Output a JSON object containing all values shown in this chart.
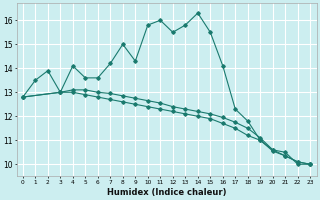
{
  "xlabel": "Humidex (Indice chaleur)",
  "background_color": "#cceef0",
  "grid_color": "#ffffff",
  "line_color": "#1a7a6e",
  "xlim": [
    -0.5,
    23.5
  ],
  "ylim": [
    9.5,
    16.7
  ],
  "yticks": [
    10,
    11,
    12,
    13,
    14,
    15,
    16
  ],
  "xticks": [
    0,
    1,
    2,
    3,
    4,
    5,
    6,
    7,
    8,
    9,
    10,
    11,
    12,
    13,
    14,
    15,
    16,
    17,
    18,
    19,
    20,
    21,
    22,
    23
  ],
  "line1_x": [
    0,
    1,
    2,
    3,
    4,
    5,
    6,
    7,
    8,
    9,
    10,
    11,
    12,
    13,
    14,
    15,
    16,
    17,
    18,
    19,
    20,
    21,
    22,
    23
  ],
  "line1_y": [
    12.8,
    13.5,
    13.9,
    13.0,
    14.1,
    13.6,
    13.6,
    14.2,
    15.0,
    14.3,
    15.8,
    16.0,
    15.5,
    15.8,
    16.3,
    15.5,
    14.1,
    12.3,
    11.8,
    11.0,
    10.6,
    10.5,
    10.0,
    10.0
  ],
  "line2_x": [
    0,
    3,
    4,
    5,
    6,
    7,
    8,
    9,
    10,
    11,
    12,
    13,
    14,
    15,
    16,
    17,
    18,
    19,
    20,
    21,
    22,
    23
  ],
  "line2_y": [
    12.8,
    13.0,
    13.1,
    13.1,
    13.0,
    12.95,
    12.85,
    12.75,
    12.65,
    12.55,
    12.4,
    12.3,
    12.2,
    12.1,
    11.95,
    11.75,
    11.5,
    11.1,
    10.6,
    10.35,
    10.1,
    10.0
  ],
  "line3_x": [
    0,
    3,
    4,
    5,
    6,
    7,
    8,
    9,
    10,
    11,
    12,
    13,
    14,
    15,
    16,
    17,
    18,
    19,
    20,
    21,
    22,
    23
  ],
  "line3_y": [
    12.8,
    13.0,
    13.0,
    12.9,
    12.8,
    12.7,
    12.6,
    12.5,
    12.4,
    12.3,
    12.2,
    12.1,
    12.0,
    11.9,
    11.7,
    11.5,
    11.2,
    11.0,
    10.55,
    10.35,
    10.1,
    10.0
  ]
}
